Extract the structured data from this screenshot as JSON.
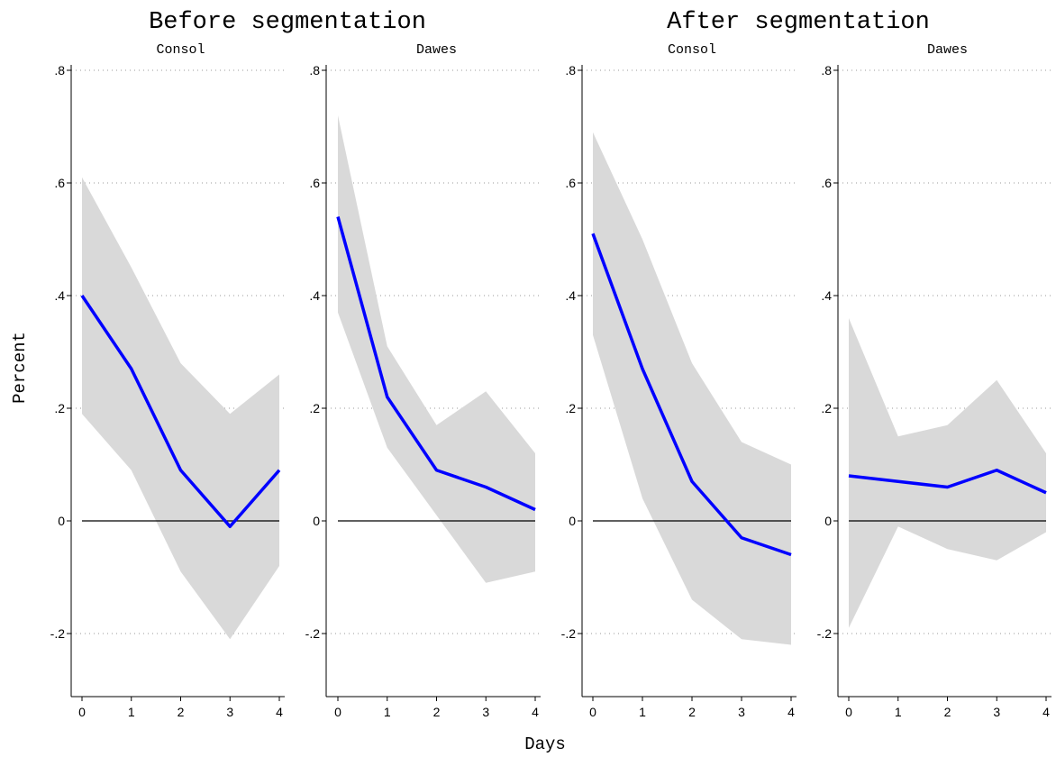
{
  "figure": {
    "groups": [
      {
        "title": "Before segmentation"
      },
      {
        "title": "After segmentation"
      }
    ],
    "ylabel": "Percent",
    "xlabel": "Days"
  },
  "chart_data": [
    {
      "type": "line",
      "group": "Before segmentation",
      "title": "Consol",
      "x": [
        0,
        1,
        2,
        3,
        4
      ],
      "series": [
        {
          "values": [
            0.4,
            0.27,
            0.09,
            -0.01,
            0.09
          ],
          "color": "#0000ff"
        }
      ],
      "band": {
        "lower": [
          0.19,
          0.09,
          -0.09,
          -0.21,
          -0.08
        ],
        "upper": [
          0.61,
          0.45,
          0.28,
          0.19,
          0.26
        ],
        "color": "#d9d9d9"
      },
      "ylim": [
        -0.32,
        0.8
      ],
      "yticks": [
        -0.2,
        0,
        0.2,
        0.4,
        0.6,
        0.8
      ],
      "ytick_labels": [
        "-.2",
        "0",
        ".2",
        ".4",
        ".6",
        ".8"
      ],
      "grid": true,
      "zero_line": true
    },
    {
      "type": "line",
      "group": "Before segmentation",
      "title": "Dawes",
      "x": [
        0,
        1,
        2,
        3,
        4
      ],
      "series": [
        {
          "values": [
            0.54,
            0.22,
            0.09,
            0.06,
            0.02
          ],
          "color": "#0000ff"
        }
      ],
      "band": {
        "lower": [
          0.37,
          0.13,
          0.01,
          -0.11,
          -0.09
        ],
        "upper": [
          0.72,
          0.31,
          0.17,
          0.23,
          0.12
        ],
        "color": "#d9d9d9"
      },
      "ylim": [
        -0.32,
        0.8
      ],
      "yticks": [
        -0.2,
        0,
        0.2,
        0.4,
        0.6,
        0.8
      ],
      "ytick_labels": [
        "-.2",
        "0",
        ".2",
        ".4",
        ".6",
        ".8"
      ],
      "grid": true,
      "zero_line": true
    },
    {
      "type": "line",
      "group": "After segmentation",
      "title": "Consol",
      "x": [
        0,
        1,
        2,
        3,
        4
      ],
      "series": [
        {
          "values": [
            0.51,
            0.27,
            0.07,
            -0.03,
            -0.06
          ],
          "color": "#0000ff"
        }
      ],
      "band": {
        "lower": [
          0.33,
          0.04,
          -0.14,
          -0.21,
          -0.22
        ],
        "upper": [
          0.69,
          0.5,
          0.28,
          0.14,
          0.1
        ],
        "color": "#d9d9d9"
      },
      "ylim": [
        -0.32,
        0.8
      ],
      "yticks": [
        -0.2,
        0,
        0.2,
        0.4,
        0.6,
        0.8
      ],
      "ytick_labels": [
        "-.2",
        "0",
        ".2",
        ".4",
        ".6",
        ".8"
      ],
      "grid": true,
      "zero_line": true
    },
    {
      "type": "line",
      "group": "After segmentation",
      "title": "Dawes",
      "x": [
        0,
        1,
        2,
        3,
        4
      ],
      "series": [
        {
          "values": [
            0.08,
            0.07,
            0.06,
            0.09,
            0.05
          ],
          "color": "#0000ff"
        }
      ],
      "band": {
        "lower": [
          -0.19,
          -0.01,
          -0.05,
          -0.07,
          -0.02
        ],
        "upper": [
          0.36,
          0.15,
          0.17,
          0.25,
          0.12
        ],
        "color": "#d9d9d9"
      },
      "ylim": [
        -0.32,
        0.8
      ],
      "yticks": [
        -0.2,
        0,
        0.2,
        0.4,
        0.6,
        0.8
      ],
      "ytick_labels": [
        "-.2",
        "0",
        ".2",
        ".4",
        ".6",
        ".8"
      ],
      "grid": true,
      "zero_line": true
    }
  ]
}
